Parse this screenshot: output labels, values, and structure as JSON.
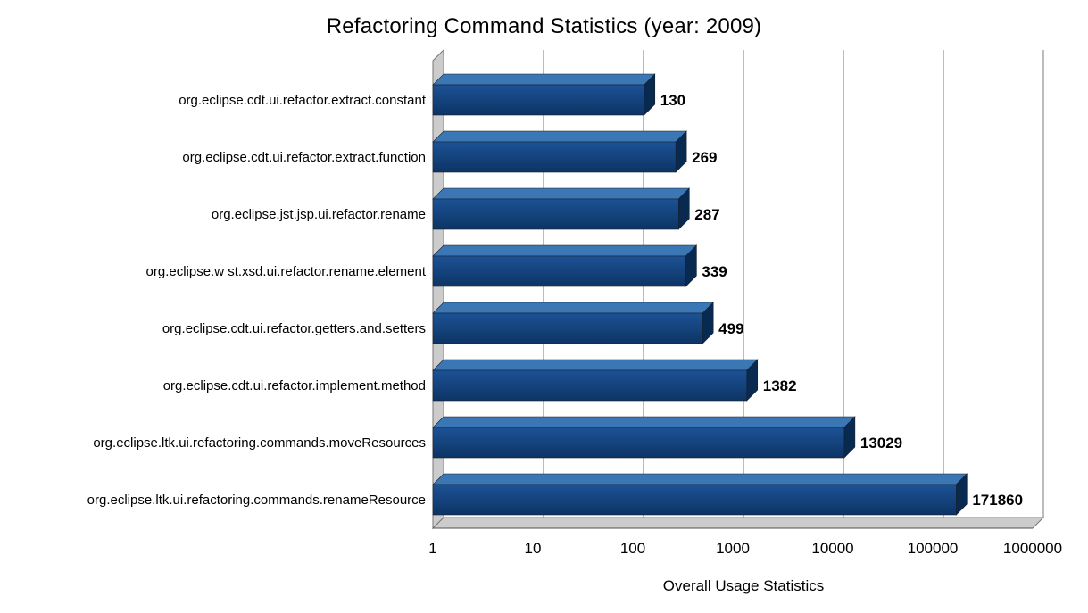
{
  "chart_data": {
    "type": "bar",
    "orientation": "horizontal",
    "title": "Refactoring Command Statistics (year: 2009)",
    "xlabel": "Overall Usage Statistics",
    "ylabel": "",
    "x_scale": "log",
    "xlim": [
      1,
      1000000
    ],
    "grid": true,
    "legend": false,
    "x_tick_labels": [
      "1",
      "10",
      "100",
      "1000",
      "10000",
      "100000",
      "1000000"
    ],
    "categories": [
      "org.eclipse.cdt.ui.refactor.extract.constant",
      "org.eclipse.cdt.ui.refactor.extract.function",
      "org.eclipse.jst.jsp.ui.refactor.rename",
      "org.eclipse.w st.xsd.ui.refactor.rename.element",
      "org.eclipse.cdt.ui.refactor.getters.and.setters",
      "org.eclipse.cdt.ui.refactor.implement.method",
      "org.eclipse.ltk.ui.refactoring.commands.moveResources",
      "org.eclipse.ltk.ui.refactoring.commands.renameResource"
    ],
    "values": [
      130,
      269,
      287,
      339,
      499,
      1382,
      13029,
      171860
    ],
    "value_labels": [
      "130",
      "269",
      "287",
      "339",
      "499",
      "1382",
      "13029",
      "171860"
    ],
    "colors": {
      "bar_front_top": "#1c5296",
      "bar_front_bottom": "#0d3464",
      "bar_top_face": "#3c77b5",
      "bar_side_face": "#092a50",
      "bar_outline": "#16202c",
      "wall": "#cccccc",
      "wall_outline": "#777777",
      "gridline": "#999999",
      "axis_line": "#555555",
      "text": "#000000"
    }
  }
}
